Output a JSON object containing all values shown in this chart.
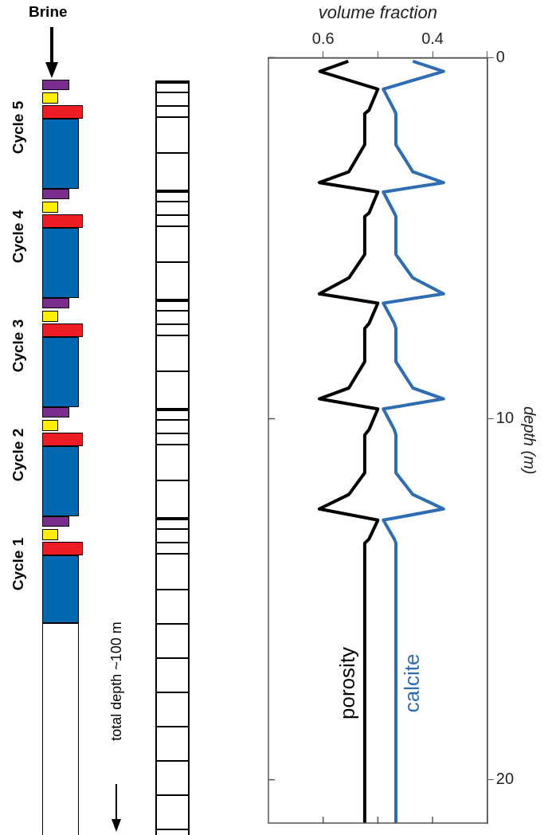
{
  "chart_data": {
    "type": "line",
    "xlabel": "volume fraction",
    "ylabel": "depth (m)",
    "xlim": [
      0.7,
      0.3
    ],
    "xticks": [
      0.6,
      {
        "value": 0.5,
        "label": null
      },
      0.4,
      {
        "value": 0.3,
        "label": null
      }
    ],
    "ylim": [
      21.2,
      0
    ],
    "yticks": [
      0,
      10,
      20
    ],
    "grid": false,
    "legend": false,
    "marker": "none",
    "line_style": "solid",
    "annotations": [
      "Brine",
      "Cycle 5",
      "Cycle 4",
      "Cycle 3",
      "Cycle 2",
      "Cycle 1",
      "total depth ~100 m"
    ],
    "series": [
      {
        "name": "porosity",
        "color": "#000000",
        "x": [
          0.554,
          0.606,
          0.5,
          0.516,
          0.524,
          0.524,
          0.553,
          0.607,
          0.5,
          0.516,
          0.524,
          0.524,
          0.553,
          0.607,
          0.5,
          0.516,
          0.524,
          0.524,
          0.553,
          0.607,
          0.5,
          0.516,
          0.524,
          0.524,
          0.553,
          0.607,
          0.5,
          0.516,
          0.524,
          0.524
        ],
        "values": [
          0.1,
          0.38,
          0.87,
          1.45,
          1.55,
          2.41,
          3.16,
          3.46,
          3.72,
          4.3,
          4.4,
          5.45,
          6.1,
          6.54,
          6.8,
          7.36,
          7.5,
          8.42,
          9.15,
          9.45,
          9.73,
          10.3,
          10.45,
          11.5,
          12.1,
          12.5,
          12.81,
          13.33,
          13.45,
          21.2
        ]
      },
      {
        "name": "calcite",
        "color": "#2e6db4",
        "x": [
          0.436,
          0.38,
          0.49,
          0.47,
          0.467,
          0.467,
          0.436,
          0.38,
          0.49,
          0.47,
          0.467,
          0.467,
          0.436,
          0.38,
          0.49,
          0.47,
          0.467,
          0.467,
          0.436,
          0.38,
          0.49,
          0.47,
          0.467,
          0.467,
          0.436,
          0.38,
          0.49,
          0.47,
          0.467,
          0.467
        ],
        "values": [
          0.1,
          0.38,
          0.87,
          1.45,
          1.55,
          2.41,
          3.16,
          3.46,
          3.72,
          4.3,
          4.4,
          5.45,
          6.1,
          6.54,
          6.8,
          7.36,
          7.5,
          8.42,
          9.15,
          9.45,
          9.73,
          10.3,
          10.45,
          11.5,
          12.1,
          12.5,
          12.81,
          13.33,
          13.45,
          21.2
        ]
      }
    ]
  }
}
